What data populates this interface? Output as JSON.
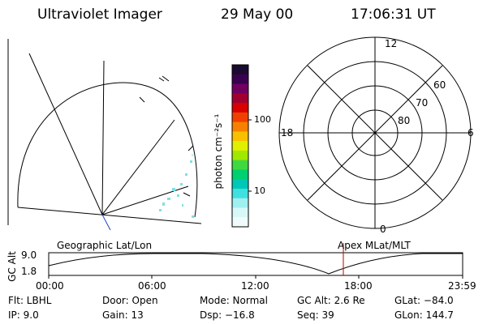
{
  "header": {
    "instrument": "Ultraviolet Imager",
    "date": "29 May 00",
    "time": "17:06:31 UT"
  },
  "colorbar": {
    "unit_label": "photon cm⁻²s⁻¹",
    "ticks": [
      "100",
      "10"
    ],
    "colors": [
      "#1a0a30",
      "#3a0050",
      "#700060",
      "#a00030",
      "#d80000",
      "#f04000",
      "#f88000",
      "#f8c000",
      "#e0f000",
      "#a0e800",
      "#40d840",
      "#00d070",
      "#00c8b8",
      "#40e0e0",
      "#a0f0f0",
      "#d8f8f8",
      "#f0fcfc"
    ]
  },
  "polar_grid": {
    "mlt_labels": {
      "top": "12",
      "left": "18",
      "right": "6",
      "bottom": "0"
    },
    "lat_labels": [
      "60",
      "70",
      "80"
    ]
  },
  "altitude_plot": {
    "ylabel": "GC Alt",
    "yticks": [
      "9.0",
      "1.8"
    ],
    "left_title": "Geographic Lat/Lon",
    "right_title": "Apex MLat/MLT",
    "xticks": [
      "00:00",
      "06:00",
      "12:00",
      "18:00",
      "23:59"
    ],
    "marker_color": "#c00000"
  },
  "info": {
    "filter": "Flt: LBHL",
    "ip": "IP:  9.0",
    "door": "Door: Open",
    "gain": "Gain: 13",
    "mode": "Mode: Normal",
    "dsp": "Dsp:  −16.8",
    "gc_alt": "GC Alt: 2.6 Re",
    "seq": "Seq: 39",
    "glat": "GLat: −84.0",
    "glon": "GLon: 144.7"
  }
}
